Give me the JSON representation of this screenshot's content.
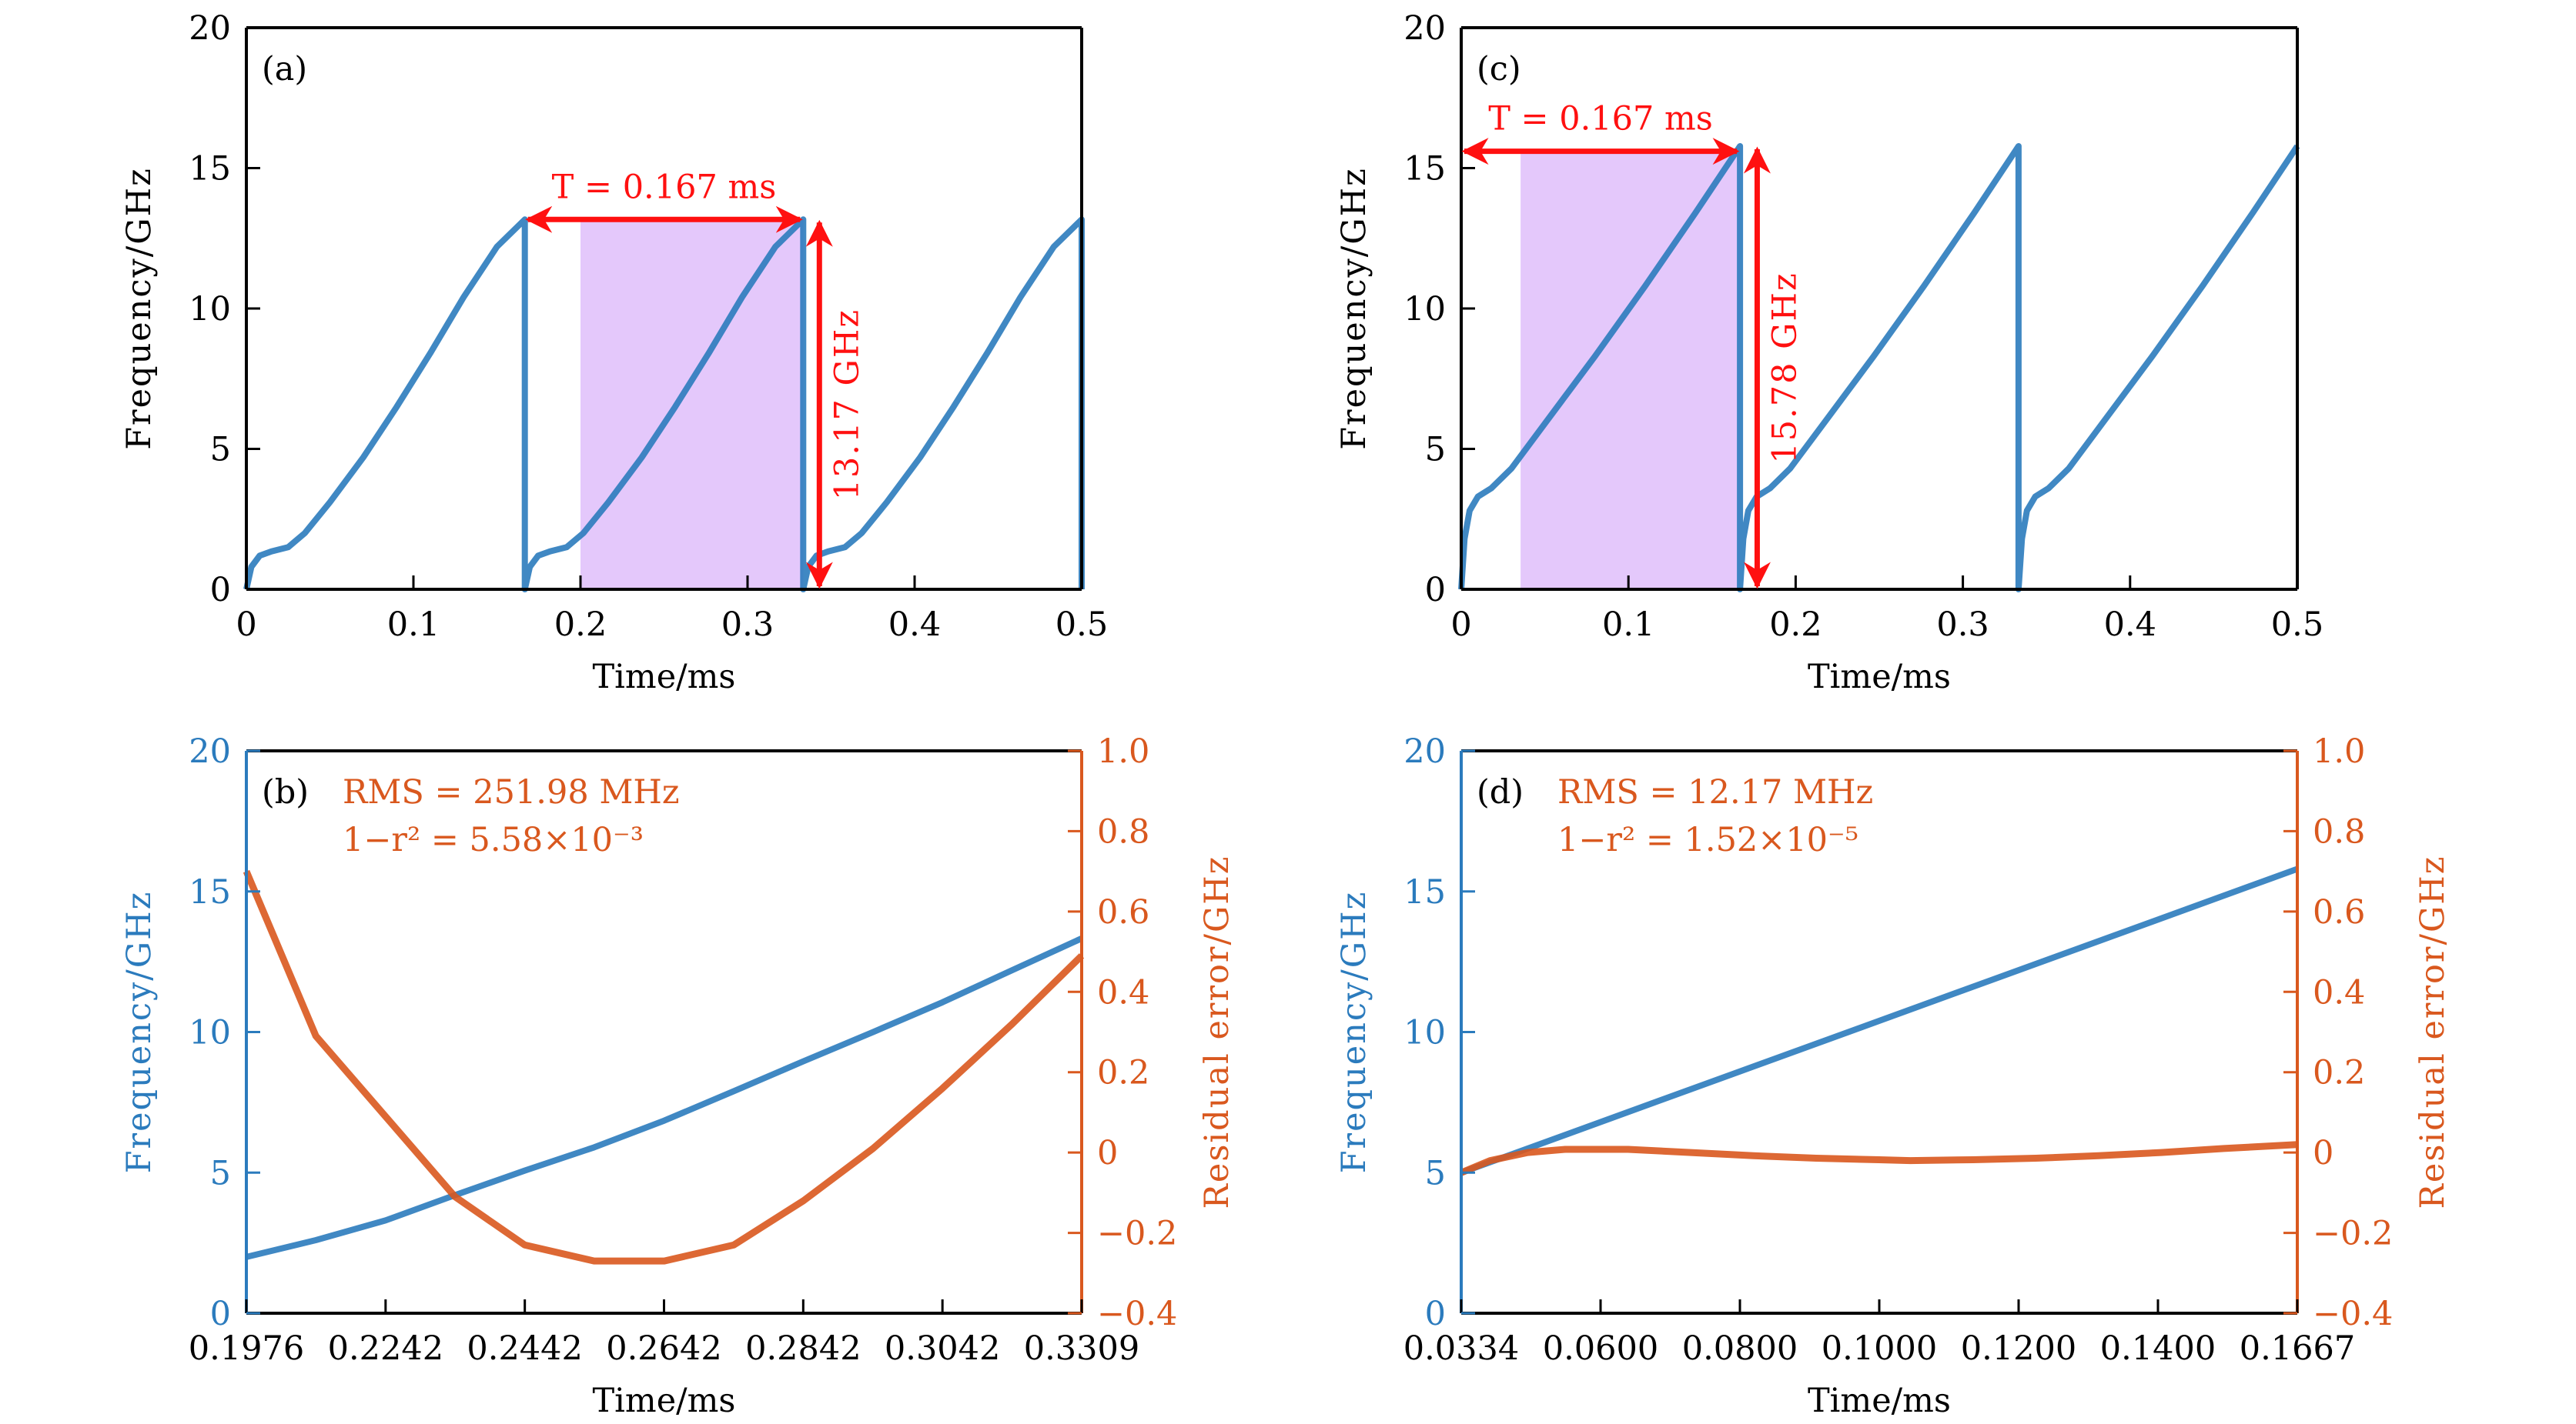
{
  "colors": {
    "frequency": "#2b7bbd",
    "residual": "#d9581e",
    "annotation": "#ff1010",
    "shade": "#e4c8fb",
    "axis": "#000000"
  },
  "chart_data": [
    {
      "panel": "(a)",
      "type": "line",
      "xlabel": "Time/ms",
      "ylabel": "Frequency/GHz",
      "xlim": [
        0,
        0.5
      ],
      "ylim": [
        0,
        20
      ],
      "xticks": [
        "0",
        "0.1",
        "0.2",
        "0.3",
        "0.4",
        "0.5"
      ],
      "yticks": [
        "0",
        "5",
        "10",
        "15",
        "20"
      ],
      "shaded_region": {
        "x": [
          0.2,
          0.3333
        ],
        "y": [
          0,
          13.17
        ]
      },
      "h_arrow": {
        "label": "T = 0.167 ms",
        "x": [
          0.1667,
          0.3333
        ],
        "y": 13.17
      },
      "v_arrow": {
        "label": "13.17 GHz",
        "x": 0.343,
        "y": [
          0,
          13.17
        ]
      },
      "series": [
        {
          "axis": "left",
          "x": [
            0,
            0.003,
            0.008,
            0.015,
            0.025,
            0.035,
            0.05,
            0.07,
            0.09,
            0.11,
            0.13,
            0.15,
            0.1667,
            0.1667,
            0.1697,
            0.1747,
            0.1817,
            0.1917,
            0.2017,
            0.2167,
            0.2367,
            0.2567,
            0.2767,
            0.2967,
            0.3167,
            0.3333,
            0.3333,
            0.3363,
            0.3413,
            0.3483,
            0.3583,
            0.3683,
            0.3833,
            0.4033,
            0.4233,
            0.4433,
            0.4633,
            0.4833,
            0.5,
            0.5
          ],
          "y": [
            0,
            0.8,
            1.2,
            1.35,
            1.5,
            2.0,
            3.1,
            4.7,
            6.5,
            8.4,
            10.4,
            12.2,
            13.17,
            0,
            0.8,
            1.2,
            1.35,
            1.5,
            2.0,
            3.1,
            4.7,
            6.5,
            8.4,
            10.4,
            12.2,
            13.17,
            0,
            0.8,
            1.2,
            1.35,
            1.5,
            2.0,
            3.1,
            4.7,
            6.5,
            8.4,
            10.4,
            12.2,
            13.17,
            0
          ]
        }
      ]
    },
    {
      "panel": "(b)",
      "type": "line",
      "xlabel": "Time/ms",
      "ylabel": "Frequency/GHz",
      "ylabel_right": "Residual error/GHz",
      "xlim": [
        0.1976,
        0.3309
      ],
      "ylim": [
        0,
        20
      ],
      "ylim_right": [
        -0.4,
        1.0
      ],
      "xticks": [
        "0.1976",
        "0.2242",
        "0.2442",
        "0.2642",
        "0.2842",
        "0.3042",
        "0.3309"
      ],
      "yticks": [
        "0",
        "5",
        "10",
        "15",
        "20"
      ],
      "yticks_right": [
        "−0.4",
        "−0.2",
        "0",
        "0.2",
        "0.4",
        "0.6",
        "0.8",
        "1.0"
      ],
      "annotations": [
        "RMS = 251.98 MHz",
        "1−r² = 5.58×10⁻³"
      ],
      "series": [
        {
          "axis": "left",
          "x": [
            0.1976,
            0.2087,
            0.2198,
            0.2309,
            0.242,
            0.2531,
            0.2643,
            0.2754,
            0.2865,
            0.2976,
            0.3087,
            0.3198,
            0.3309
          ],
          "y": [
            2.0,
            2.6,
            3.3,
            4.2,
            5.07,
            5.9,
            6.85,
            7.9,
            8.96,
            10.0,
            11.06,
            12.2,
            13.33
          ]
        },
        {
          "axis": "right",
          "x": [
            0.1976,
            0.2087,
            0.2198,
            0.2309,
            0.242,
            0.2531,
            0.2643,
            0.2754,
            0.2865,
            0.2976,
            0.3087,
            0.3198,
            0.3309
          ],
          "y": [
            0.7,
            0.29,
            0.09,
            -0.11,
            -0.23,
            -0.27,
            -0.27,
            -0.23,
            -0.12,
            0.01,
            0.16,
            0.32,
            0.49
          ]
        }
      ]
    },
    {
      "panel": "(c)",
      "type": "line",
      "xlabel": "Time/ms",
      "ylabel": "Frequency/GHz",
      "xlim": [
        0,
        0.5
      ],
      "ylim": [
        0,
        20
      ],
      "xticks": [
        "0",
        "0.1",
        "0.2",
        "0.3",
        "0.4",
        "0.5"
      ],
      "yticks": [
        "0",
        "5",
        "10",
        "15",
        "20"
      ],
      "shaded_region": {
        "x": [
          0.0355,
          0.1667
        ],
        "y": [
          0,
          15.6
        ]
      },
      "h_arrow": {
        "label": "T = 0.167 ms",
        "x": [
          0,
          0.1667
        ],
        "y": 15.6
      },
      "v_arrow": {
        "label": "15.78 GHz",
        "x": 0.177,
        "y": [
          0,
          15.78
        ]
      },
      "series": [
        {
          "axis": "left",
          "x": [
            0,
            0.002,
            0.005,
            0.01,
            0.018,
            0.03,
            0.05,
            0.08,
            0.11,
            0.14,
            0.1667,
            0.1667,
            0.1687,
            0.1717,
            0.1767,
            0.1847,
            0.1967,
            0.2167,
            0.2467,
            0.2767,
            0.3067,
            0.3333,
            0.3333,
            0.3353,
            0.3383,
            0.3433,
            0.3513,
            0.3633,
            0.3833,
            0.4133,
            0.4433,
            0.4733,
            0.5
          ],
          "y": [
            0,
            1.8,
            2.8,
            3.3,
            3.6,
            4.3,
            5.9,
            8.3,
            10.8,
            13.4,
            15.78,
            0,
            1.8,
            2.8,
            3.3,
            3.6,
            4.3,
            5.9,
            8.3,
            10.8,
            13.4,
            15.78,
            0,
            1.8,
            2.8,
            3.3,
            3.6,
            4.3,
            5.9,
            8.3,
            10.8,
            13.4,
            15.78
          ]
        }
      ]
    },
    {
      "panel": "(d)",
      "type": "line",
      "xlabel": "Time/ms",
      "ylabel": "Frequency/GHz",
      "ylabel_right": "Residual error/GHz",
      "xlim": [
        0.0334,
        0.1667
      ],
      "ylim": [
        0,
        20
      ],
      "ylim_right": [
        -0.4,
        1.0
      ],
      "xticks": [
        "0.0334",
        "0.0600",
        "0.0800",
        "0.1000",
        "0.1200",
        "0.1400",
        "0.1667"
      ],
      "yticks": [
        "0",
        "5",
        "10",
        "15",
        "20"
      ],
      "yticks_right": [
        "−0.4",
        "−0.2",
        "0",
        "0.2",
        "0.4",
        "0.6",
        "0.8",
        "1.0"
      ],
      "annotations": [
        "RMS = 12.17 MHz",
        "1−r² = 1.52×10⁻⁵"
      ],
      "series": [
        {
          "axis": "left",
          "x": [
            0.0334,
            0.1667
          ],
          "y": [
            5.0,
            15.8
          ]
        },
        {
          "axis": "right",
          "x": [
            0.0334,
            0.038,
            0.044,
            0.05,
            0.06,
            0.07,
            0.08,
            0.09,
            0.1,
            0.105,
            0.115,
            0.125,
            0.135,
            0.145,
            0.155,
            0.1667
          ],
          "y": [
            -0.05,
            -0.02,
            0.0,
            0.008,
            0.008,
            0.0,
            -0.008,
            -0.014,
            -0.018,
            -0.02,
            -0.018,
            -0.014,
            -0.008,
            0.0,
            0.01,
            0.02
          ]
        }
      ]
    }
  ]
}
